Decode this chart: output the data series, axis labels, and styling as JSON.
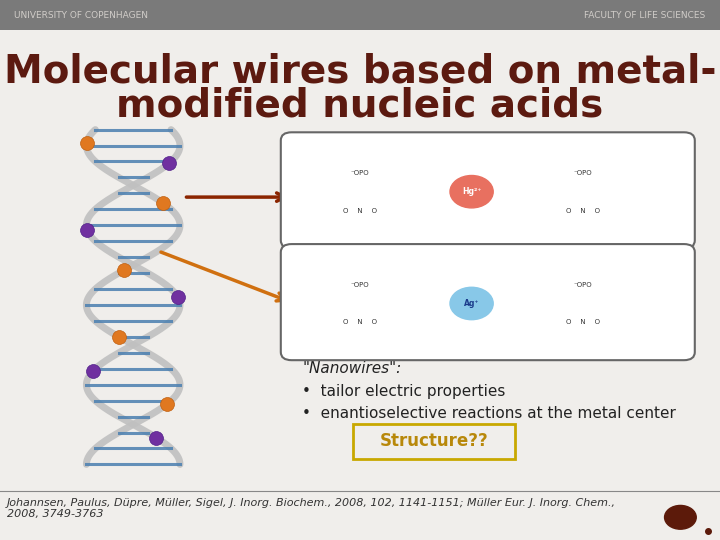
{
  "bg_color": "#f0eeeb",
  "header_color": "#7a7a7a",
  "header_text_left": "UNIVERSITY OF COPENHAGEN",
  "header_text_right": "FACULTY OF LIFE SCIENCES",
  "header_text_color": "#d0ccc8",
  "title_line1": "Molecular wires based on metal-",
  "title_line2": "modified nucleic acids",
  "title_color": "#5c1a10",
  "title_fontsize": 28,
  "nanowires_label": "\"Nanowires\":",
  "bullet1": "tailor electric properties",
  "bullet2": "enantioselective reactions at the metal center",
  "text_color": "#222222",
  "text_fontsize": 11,
  "structure_text": "Structure??",
  "structure_box_color": "#c8a800",
  "structure_text_color": "#b8880a",
  "citation": "Johannsen, Paulus, Düpre, Müller, Sigel, J. Inorg. Biochem., 2008, 102, 1141-1151; Müller Eur. J. Inorg. Chem.,\n2008, 3749-3763",
  "citation_fontsize": 8,
  "footer_line_color": "#888888"
}
